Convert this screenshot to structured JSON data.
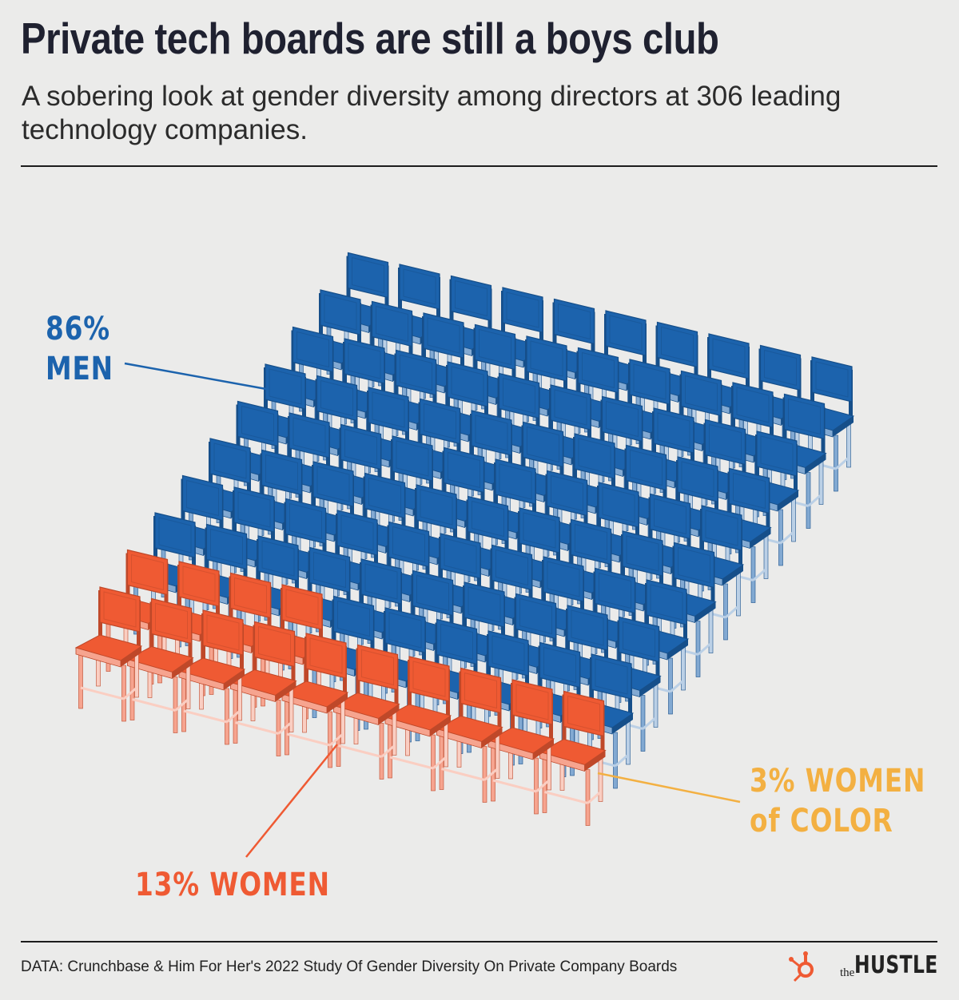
{
  "title": "Private tech boards are still a boys club",
  "subtitle": "A sobering look at gender diversity among directors at 306 leading technology companies.",
  "source": "DATA: Crunchbase & Him For Her's 2022 Study Of Gender Diversity On Private Company Boards",
  "brand": {
    "prefix": "the",
    "name": "HUSTLE",
    "icon": "hubspot-sprocket-icon"
  },
  "colors": {
    "men": "#1c63ad",
    "women": "#ef5a33",
    "women_of_color": "#f3b042",
    "background": "#ebebea"
  },
  "labels": {
    "men_pct": "86%",
    "men_word": "MEN",
    "women": "13% WOMEN",
    "woc_line1": "3% WOMEN",
    "woc_line2": "of COLOR"
  },
  "chart_data": {
    "type": "pictogram",
    "unit_icon": "chair-icon",
    "total_units": 100,
    "series": [
      {
        "name": "MEN",
        "value": 86,
        "color": "#1c63ad"
      },
      {
        "name": "WOMEN",
        "value": 13,
        "color": "#ef5a33"
      },
      {
        "name": "WOMEN of COLOR",
        "value": 3,
        "color": "#f3b042"
      }
    ]
  }
}
